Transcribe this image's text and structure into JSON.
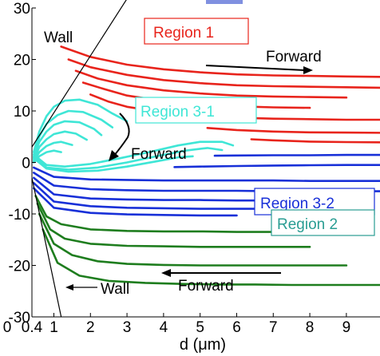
{
  "chart_data": {
    "type": "line",
    "xlabel": "d (μm)",
    "ylabel": "",
    "xlim": [
      0.4,
      10
    ],
    "ylim": [
      -30,
      30
    ],
    "x_ticks": [
      "0",
      "0.4",
      "1",
      "2",
      "3",
      "4",
      "5",
      "6",
      "7",
      "8",
      "9"
    ],
    "y_ticks": [
      "30",
      "20",
      "10",
      "0",
      "-10",
      "-20",
      "-30"
    ],
    "grid": false,
    "colors": {
      "region1": "#e8241c",
      "region2": "#1e7d1e",
      "region31": "#3fe6d6",
      "region32": "#1830d8",
      "wall": "#000000",
      "region2_box": "#2a9d93"
    },
    "annotations": {
      "wall_top": "Wall",
      "wall_bottom": "Wall",
      "region1": "Region 1",
      "region2": "Region 2",
      "region31": "Region 3-1",
      "region32": "Region 3-2",
      "forward_top": "Forward",
      "forward_mid": "Forward",
      "forward_bottom": "Forward"
    },
    "walls": [
      {
        "x": [
          0.4,
          3.2
        ],
        "y": [
          3,
          34
        ]
      },
      {
        "x": [
          0.4,
          1.2
        ],
        "y": [
          -3,
          -30
        ]
      }
    ],
    "series": [
      {
        "region": "region1",
        "x": [
          1.2,
          2,
          3,
          4,
          5,
          6,
          7,
          8,
          9,
          10
        ],
        "y": [
          22.5,
          20.5,
          19,
          18.1,
          17.5,
          17.1,
          16.9,
          16.8,
          16.7,
          16.6
        ]
      },
      {
        "region": "region1",
        "x": [
          1.4,
          2,
          3,
          4,
          5,
          6,
          7,
          8,
          9,
          10
        ],
        "y": [
          20,
          18.5,
          17,
          16,
          15.4,
          15,
          14.8,
          14.7,
          14.6,
          14.5
        ]
      },
      {
        "region": "region1",
        "x": [
          1.6,
          2.2,
          3,
          4,
          5,
          6,
          7,
          8,
          9
        ],
        "y": [
          17.8,
          16.3,
          15,
          14,
          13.4,
          13,
          12.8,
          12.7,
          12.6
        ]
      },
      {
        "region": "region1",
        "x": [
          1.8,
          2.4,
          3,
          4,
          5,
          6,
          7,
          8
        ],
        "y": [
          15.5,
          14.2,
          13,
          11.9,
          11.3,
          10.9,
          10.7,
          10.6
        ]
      },
      {
        "region": "region1",
        "x": [
          2,
          2.5,
          3,
          4,
          5,
          6,
          7,
          8,
          9,
          10
        ],
        "y": [
          13.2,
          11.8,
          10.8,
          9.7,
          9,
          8.7,
          8.5,
          8.4,
          8.3,
          8.3
        ]
      },
      {
        "region": "region1",
        "x": [
          5.2,
          6,
          7,
          8,
          9,
          10
        ],
        "y": [
          6.7,
          6.3,
          6.0,
          5.85,
          5.8,
          5.75
        ]
      },
      {
        "region": "region1",
        "x": [
          6.4,
          7,
          8,
          9,
          10
        ],
        "y": [
          4.5,
          4.3,
          4.05,
          3.95,
          3.9
        ]
      },
      {
        "region": "region31",
        "x": [
          0.45,
          0.6,
          0.8,
          1.0,
          1.3,
          1.7,
          2.2,
          2.6,
          3.0
        ],
        "y": [
          2,
          6,
          9,
          10.8,
          12,
          12.2,
          11.2,
          9.5,
          8
        ]
      },
      {
        "region": "region31",
        "x": [
          0.45,
          0.6,
          0.8,
          1.1,
          1.4,
          1.8,
          2.3,
          2.6
        ],
        "y": [
          1.5,
          5,
          7.5,
          9.2,
          10,
          9.8,
          8.3,
          6.8
        ]
      },
      {
        "region": "region31",
        "x": [
          0.45,
          0.6,
          0.8,
          1.0,
          1.3,
          1.7,
          2.1,
          2.3
        ],
        "y": [
          1,
          4,
          6,
          7.3,
          8,
          7.8,
          6.5,
          5.3
        ]
      },
      {
        "region": "region31",
        "x": [
          0.45,
          0.6,
          0.8,
          1.0,
          1.3,
          1.6,
          1.9
        ],
        "y": [
          0.5,
          3,
          4.5,
          5.5,
          6,
          5.6,
          4.4
        ]
      },
      {
        "region": "region31",
        "x": [
          0.45,
          0.6,
          0.8,
          1.0,
          1.2,
          1.5
        ],
        "y": [
          0.2,
          2,
          3.2,
          3.8,
          4,
          3.4
        ]
      },
      {
        "region": "region31",
        "x": [
          0.45,
          0.6,
          0.8,
          1.0,
          1.2
        ],
        "y": [
          0,
          1.2,
          2,
          2.3,
          2
        ]
      },
      {
        "region": "region31",
        "x": [
          0.45,
          0.8,
          1.3,
          2.0,
          2.8,
          3.6,
          4.4,
          5.0,
          5.6,
          5.9
        ],
        "y": [
          1.5,
          -0.5,
          -0.8,
          -0.3,
          0.8,
          2.0,
          3.3,
          4.0,
          4.0,
          3.3
        ]
      },
      {
        "region": "region31",
        "x": [
          0.45,
          0.8,
          1.4,
          2.2,
          3.0,
          3.8,
          4.6,
          5.2,
          5.6
        ],
        "y": [
          1.2,
          -1,
          -1.4,
          -1,
          0,
          1.2,
          2.3,
          2.8,
          2.4
        ]
      },
      {
        "region": "region31",
        "x": [
          0.45,
          0.8,
          1.4,
          2.2,
          3.0,
          3.8,
          4.4,
          4.8
        ],
        "y": [
          0.8,
          -1.2,
          -1.8,
          -1.6,
          -0.8,
          0.2,
          1.0,
          1.2
        ]
      },
      {
        "region": "region32",
        "x": [
          0.45,
          1,
          2,
          3,
          4,
          5,
          6,
          7,
          8,
          9,
          10
        ],
        "y": [
          -1,
          -2.8,
          -3.3,
          -3.4,
          -3.5,
          -3.5,
          -3.5,
          -3.5,
          -3.6,
          -3.6,
          -3.6
        ]
      },
      {
        "region": "region32",
        "x": [
          0.45,
          1,
          2,
          3,
          4,
          5,
          6,
          7,
          8,
          9,
          10
        ],
        "y": [
          -2,
          -4.5,
          -5.2,
          -5.4,
          -5.5,
          -5.5,
          -5.5,
          -5.6,
          -5.6,
          -5.6,
          -5.6
        ]
      },
      {
        "region": "region32",
        "x": [
          0.45,
          1,
          2,
          3,
          4,
          5,
          6,
          7,
          8,
          9
        ],
        "y": [
          -3,
          -6.2,
          -7.0,
          -7.2,
          -7.3,
          -7.3,
          -7.4,
          -7.4,
          -7.4,
          -7.4
        ]
      },
      {
        "region": "region32",
        "x": [
          0.45,
          1,
          2,
          3,
          4,
          5,
          6,
          7,
          8
        ],
        "y": [
          -4,
          -7.6,
          -8.5,
          -8.8,
          -8.9,
          -9.0,
          -9.0,
          -9.0,
          -9.0
        ]
      },
      {
        "region": "region32",
        "x": [
          0.45,
          1,
          2,
          3,
          4,
          5,
          6
        ],
        "y": [
          -5,
          -8.8,
          -9.8,
          -10.1,
          -10.2,
          -10.3,
          -10.3
        ]
      },
      {
        "region": "region32",
        "x": [
          5.4,
          6,
          7,
          8,
          9,
          10
        ],
        "y": [
          1.3,
          1.35,
          1.4,
          1.4,
          1.45,
          1.45
        ]
      },
      {
        "region": "region32",
        "x": [
          4.3,
          5,
          6,
          7,
          8,
          9,
          10
        ],
        "y": [
          -0.9,
          -0.8,
          -0.7,
          -0.6,
          -0.55,
          -0.5,
          -0.5
        ]
      },
      {
        "region": "region2",
        "x": [
          0.5,
          0.8,
          1.2,
          2,
          3,
          4,
          5,
          6,
          7
        ],
        "y": [
          -6.5,
          -10.5,
          -12,
          -13,
          -13.3,
          -13.4,
          -13.4,
          -13.5,
          -13.5
        ]
      },
      {
        "region": "region2",
        "x": [
          0.55,
          0.9,
          1.3,
          2,
          3,
          4,
          5,
          6,
          7,
          8
        ],
        "y": [
          -8,
          -13,
          -14.8,
          -15.8,
          -16.2,
          -16.3,
          -16.4,
          -16.4,
          -16.4,
          -16.4
        ]
      },
      {
        "region": "region2",
        "x": [
          0.6,
          1.0,
          1.5,
          2.2,
          3,
          4,
          5,
          6,
          7,
          8,
          9
        ],
        "y": [
          -10,
          -15.8,
          -18,
          -19.2,
          -19.7,
          -19.9,
          -20,
          -20,
          -20,
          -20,
          -20
        ]
      },
      {
        "region": "region2",
        "x": [
          0.7,
          1.1,
          1.7,
          2.5,
          3.5,
          4.5,
          5.5,
          6.5,
          7.5,
          8.5,
          9.5,
          10
        ],
        "y": [
          -13,
          -19.5,
          -22,
          -23,
          -23.4,
          -23.6,
          -23.7,
          -23.7,
          -23.8,
          -23.8,
          -23.8,
          -23.8
        ]
      }
    ]
  }
}
